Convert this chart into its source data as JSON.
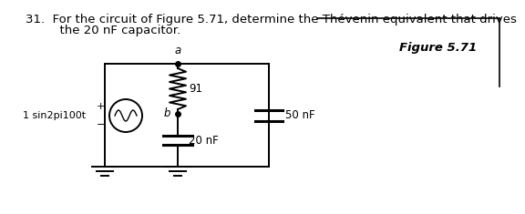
{
  "title_line1": "31.  For the circuit of Figure 5.71, determine the Thévenin equivalent that drives",
  "title_line2": "      the 20 nF capacitor.",
  "figure_label": "Figure 5.71",
  "source_label": "1 sin2pi100t",
  "resistor_label": "91",
  "cap1_label": "50 nF",
  "cap2_label": "20 nF",
  "node_a": "a",
  "node_b": "b",
  "bg_color": "#ffffff",
  "line_color": "#000000",
  "text_color": "#000000",
  "font_size_title": 9.5,
  "font_size_labels": 8.5,
  "font_size_nodes": 8.5,
  "font_size_fig_label": 9.5,
  "font_size_source": 8.0
}
